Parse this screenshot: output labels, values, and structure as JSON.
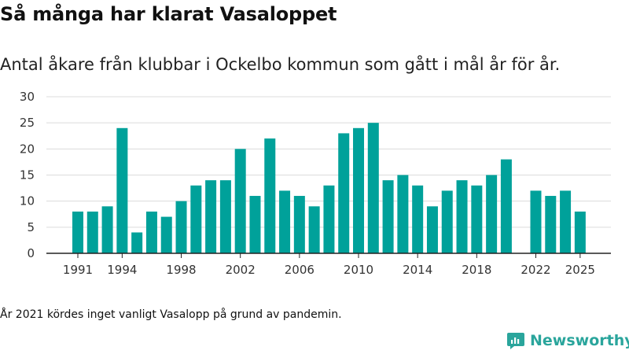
{
  "title": "Så många har klarat Vasaloppet",
  "subtitle": "Antal åkare från klubbar i Ockelbo kommun som gått i mål år för år.",
  "footnote": "År 2021 kördes inget vanligt Vasalopp på grund av pandemin.",
  "brand": {
    "name": "Newsworthy",
    "color": "#2aa59c",
    "icon": "newsworthy-logo-icon"
  },
  "chart_data": {
    "type": "bar",
    "color": "#00a19a",
    "x": [
      1991,
      1992,
      1993,
      1994,
      1995,
      1996,
      1997,
      1998,
      1999,
      2000,
      2001,
      2002,
      2003,
      2004,
      2005,
      2006,
      2007,
      2008,
      2009,
      2010,
      2011,
      2012,
      2013,
      2014,
      2015,
      2016,
      2017,
      2018,
      2019,
      2020,
      2021,
      2022,
      2023,
      2024,
      2025
    ],
    "values": [
      8,
      8,
      9,
      24,
      4,
      8,
      7,
      10,
      13,
      14,
      14,
      20,
      11,
      22,
      12,
      11,
      9,
      13,
      23,
      24,
      25,
      14,
      15,
      13,
      9,
      12,
      14,
      13,
      15,
      18,
      null,
      12,
      11,
      12,
      8
    ],
    "x_ticks": [
      "1991",
      "1994",
      "1998",
      "2002",
      "2006",
      "2010",
      "2014",
      "2018",
      "2022",
      "2025"
    ],
    "y_ticks": [
      "0",
      "5",
      "10",
      "15",
      "20",
      "25",
      "30"
    ],
    "ylim": [
      0,
      30
    ],
    "grid": true
  }
}
